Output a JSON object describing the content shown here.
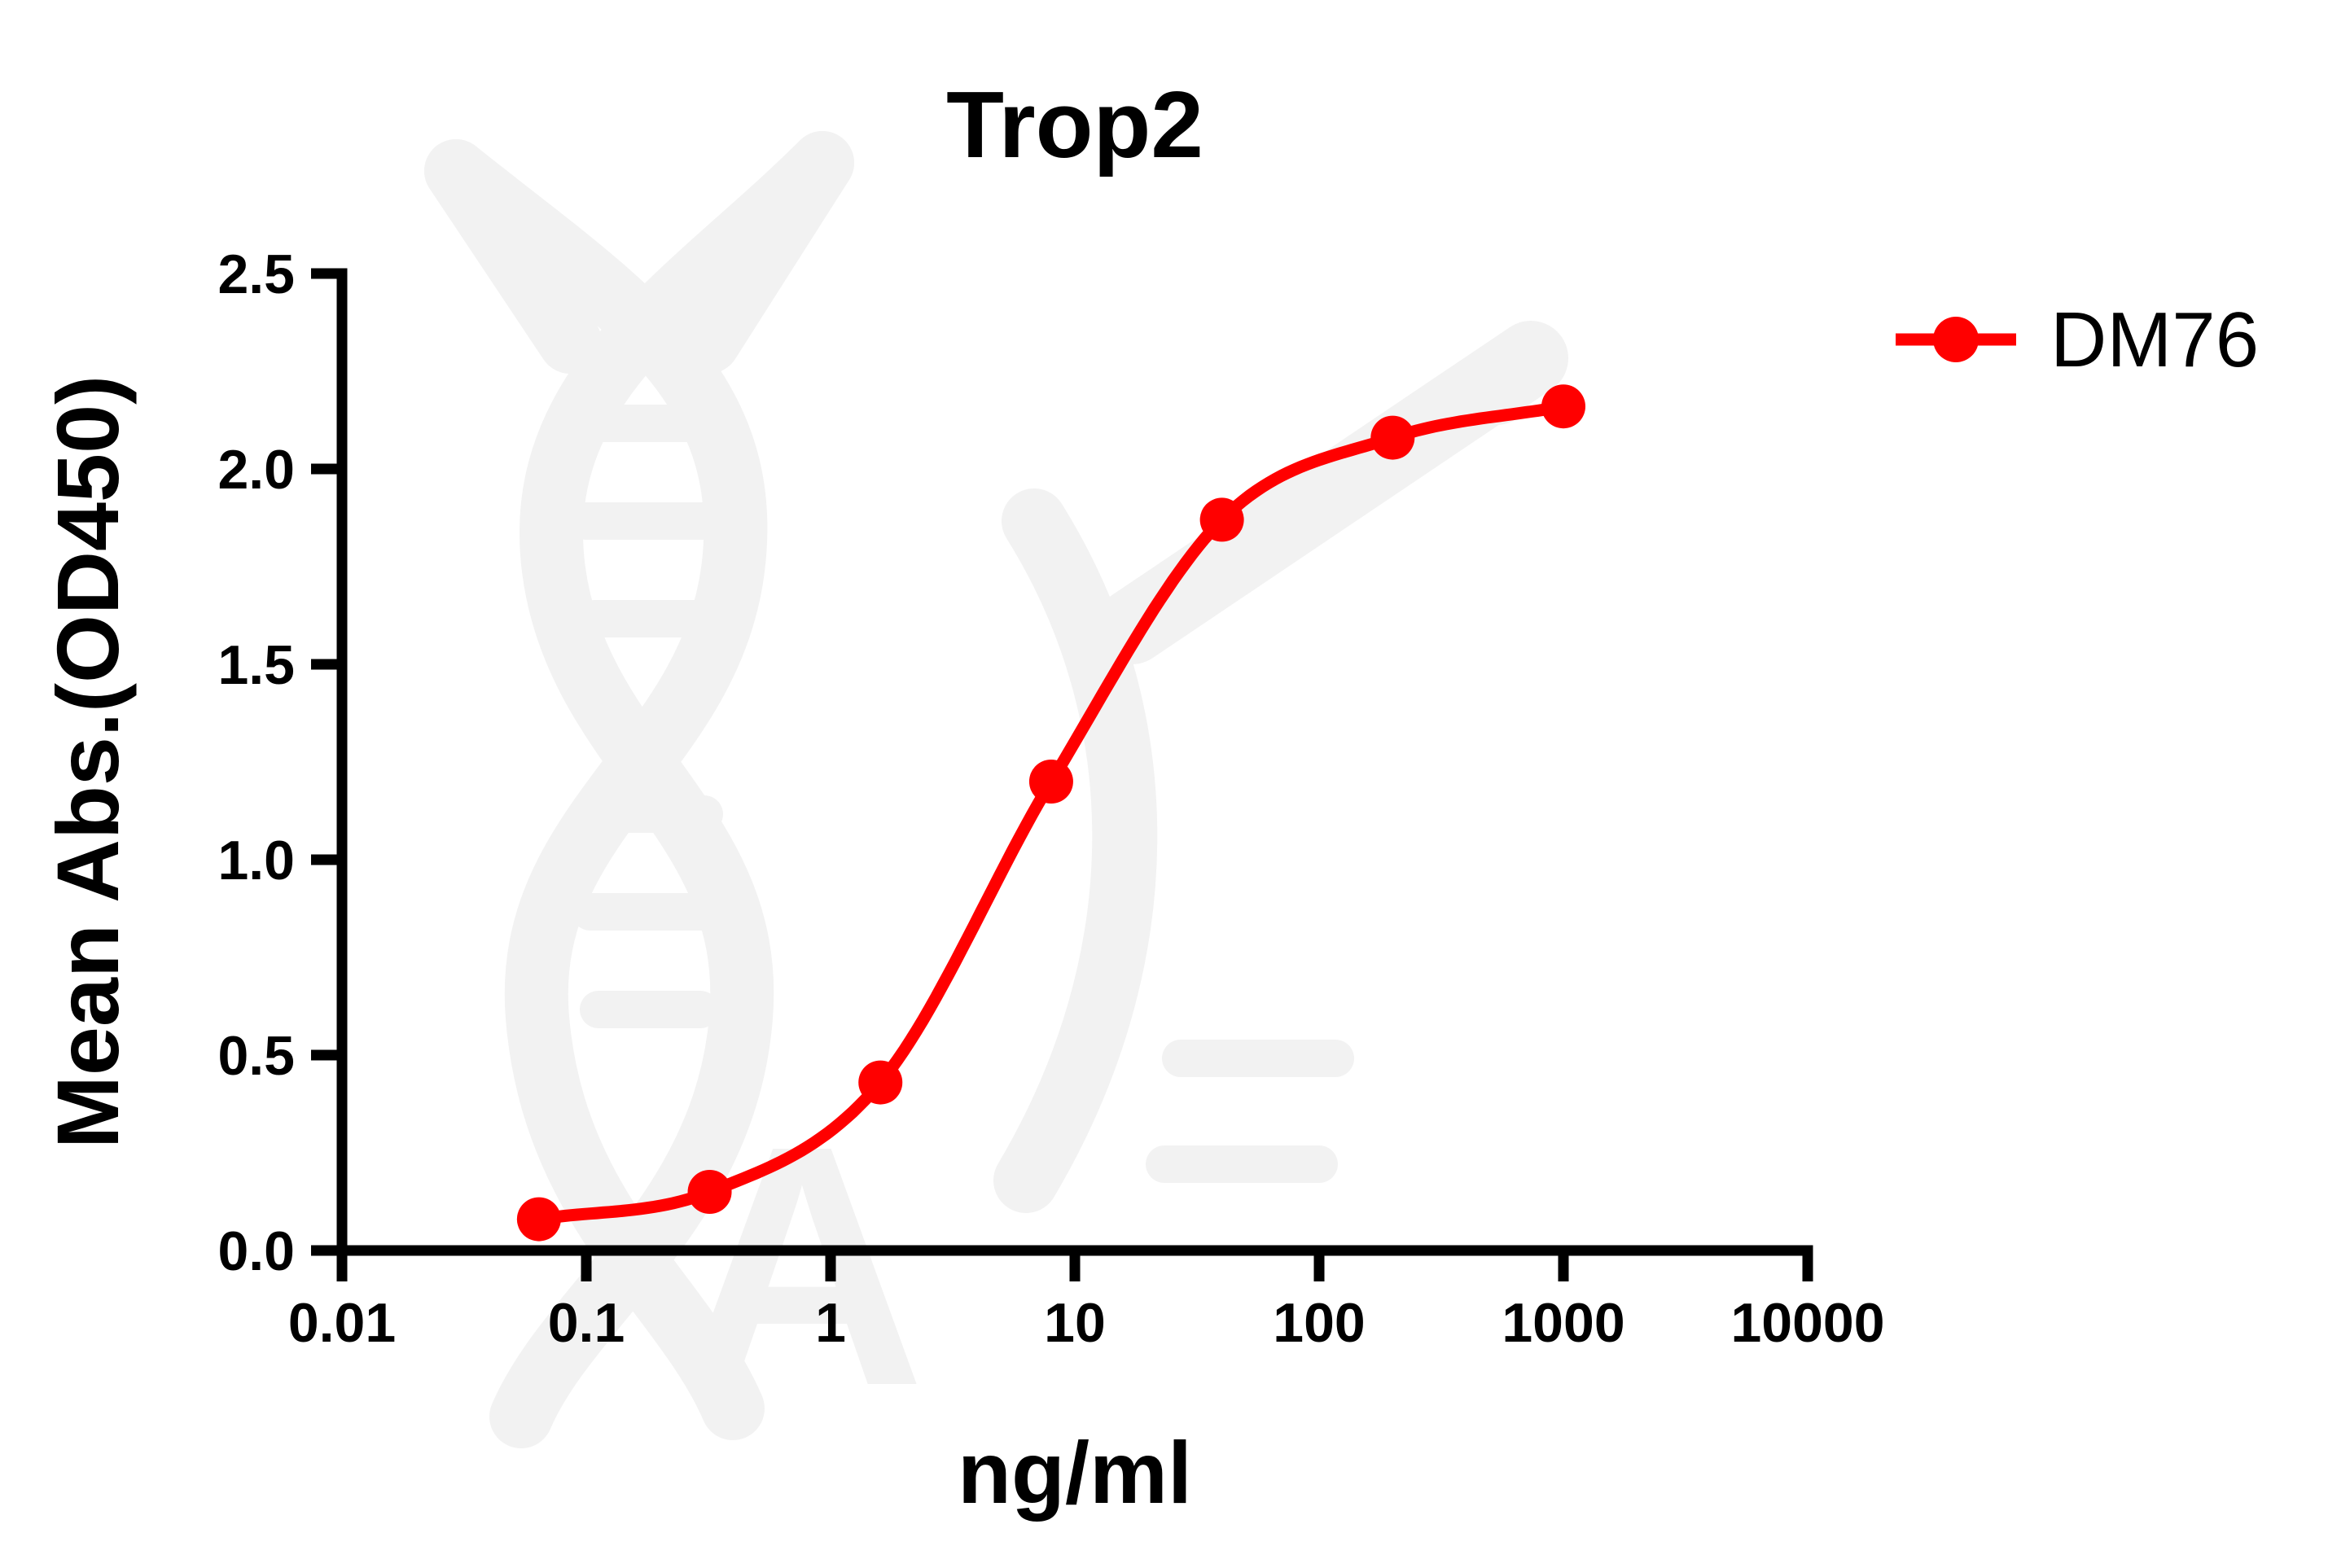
{
  "title": "Trop2",
  "axes": {
    "x": {
      "label": "ng/ml",
      "scale": "log10",
      "ticks": [
        "0.01",
        "0.1",
        "1",
        "10",
        "100",
        "1000",
        "10000"
      ],
      "tick_values": [
        0.01,
        0.1,
        1,
        10,
        100,
        1000,
        10000
      ],
      "min": 0.01,
      "max": 10000
    },
    "y": {
      "label": "Mean Abs.(OD450)",
      "scale": "linear",
      "ticks": [
        "0.0",
        "0.5",
        "1.0",
        "1.5",
        "2.0",
        "2.5"
      ],
      "tick_values": [
        0,
        0.5,
        1.0,
        1.5,
        2.0,
        2.5
      ],
      "min": 0,
      "max": 2.5
    }
  },
  "legend": {
    "position": "right-top",
    "entries": [
      {
        "label": "DM76",
        "color": "#ff0000",
        "marker": "circle"
      }
    ]
  },
  "chart_data": {
    "type": "line",
    "title": "Trop2",
    "xlabel": "ng/ml",
    "ylabel": "Mean Abs.(OD450)",
    "x_scale": "log10",
    "xlim": [
      0.01,
      10000
    ],
    "ylim": [
      0,
      2.5
    ],
    "grid": false,
    "legend_position": "right-top",
    "series": [
      {
        "name": "DM76",
        "color": "#ff0000",
        "marker": "circle",
        "x": [
          0.064,
          0.32,
          1.6,
          8,
          40,
          200,
          1000
        ],
        "y": [
          0.08,
          0.15,
          0.43,
          1.2,
          1.87,
          2.08,
          2.16
        ]
      }
    ]
  },
  "colors": {
    "series": "#ff0000",
    "axis": "#000000",
    "text": "#000000",
    "watermark": "#f2f2f2",
    "background": "#ffffff"
  }
}
